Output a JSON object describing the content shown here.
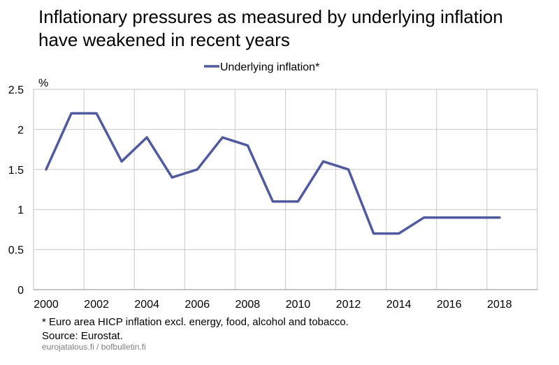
{
  "chart_data": {
    "type": "line",
    "title_lines": [
      "Inflationary pressures as measured by underlying inflation",
      "have weakened in recent years"
    ],
    "ylabel": "%",
    "xlabel": "",
    "ylim": [
      0,
      2.5
    ],
    "yticks": [
      0,
      0.5,
      1,
      1.5,
      2,
      2.5
    ],
    "ytick_labels": [
      "0",
      "0.5",
      "1",
      "1.5",
      "2",
      "2.5"
    ],
    "xlim": [
      2000,
      2020
    ],
    "xticks": [
      2000,
      2002,
      2004,
      2006,
      2008,
      2010,
      2012,
      2014,
      2016,
      2018
    ],
    "xtick_labels": [
      "2000",
      "2002",
      "2004",
      "2006",
      "2008",
      "2010",
      "2012",
      "2014",
      "2016",
      "2018"
    ],
    "grid": true,
    "legend_position": "top-center",
    "series": [
      {
        "name": "Underlying inflation*",
        "color": "#4f5aa0",
        "x": [
          2000,
          2001,
          2002,
          2003,
          2004,
          2005,
          2006,
          2007,
          2008,
          2009,
          2010,
          2011,
          2012,
          2013,
          2014,
          2015,
          2016,
          2017,
          2018
        ],
        "values": [
          1.5,
          2.2,
          2.2,
          1.6,
          1.9,
          1.4,
          1.5,
          1.9,
          1.8,
          1.1,
          1.1,
          1.6,
          1.5,
          0.7,
          0.7,
          0.9,
          0.9,
          0.9,
          0.9
        ]
      }
    ]
  },
  "notes": {
    "footnote": "* Euro area HICP inflation excl. energy, food, alcohol and tobacco.",
    "source": "Source: Eurostat.",
    "site": "eurojatalous.fi / bofbulletin.fi"
  }
}
